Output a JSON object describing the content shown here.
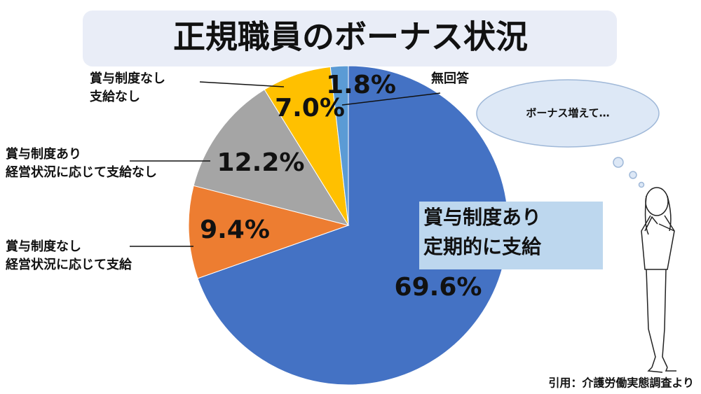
{
  "chart_data": {
    "type": "pie",
    "title": "正規職員のボーナス状況",
    "categories": [
      "賞与制度あり\n定期的に支給",
      "賞与制度なし\n経営状況に応じて支給",
      "賞与制度あり\n経営状況に応じて支給なし",
      "賞与制度なし\n支給なし",
      "無回答"
    ],
    "values": [
      69.6,
      9.4,
      12.2,
      7.0,
      1.8
    ],
    "value_labels": [
      "69.6%",
      "9.4%",
      "12.2%",
      "7.0%",
      "1.8%"
    ],
    "colors": [
      "#4472c4",
      "#ed7d31",
      "#a5a5a5",
      "#ffc000",
      "#5b9bd5"
    ],
    "thought": "ボーナス増えて…",
    "source": "引用：介護労働実態調査より"
  }
}
